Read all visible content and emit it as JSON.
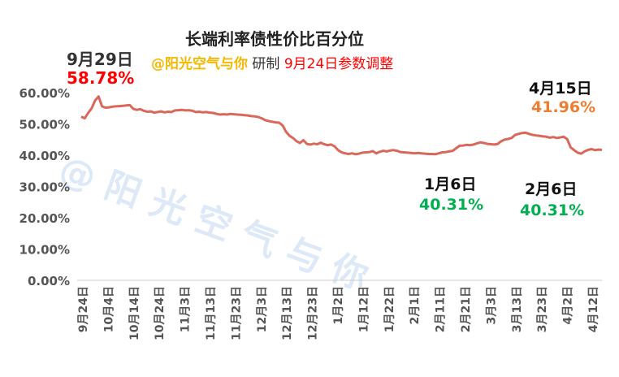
{
  "chart_data": {
    "type": "line",
    "title": "长端利率债性价比百分位",
    "subtitle": {
      "author": "@阳光空气与你",
      "made_by": "研制",
      "note": "9月24日参数调整"
    },
    "watermark": "@ 阳 光 空 气 与 你",
    "xlabel": "",
    "ylabel": "",
    "ylim": [
      0,
      0.6
    ],
    "y_ticks": [
      "0.00%",
      "10.00%",
      "20.00%",
      "30.00%",
      "40.00%",
      "50.00%",
      "60.00%"
    ],
    "x_ticks": [
      "9月24日",
      "10月4日",
      "10月14日",
      "10月24日",
      "11月3日",
      "11月13日",
      "11月23日",
      "12月3日",
      "12月13日",
      "12月23日",
      "1月2日",
      "1月12日",
      "1月22日",
      "2月1日",
      "2月11日",
      "2月21日",
      "3月3日",
      "3月13日",
      "3月23日",
      "4月2日",
      "4月12日"
    ],
    "grid": false,
    "legend": "none",
    "line_color": "#D9685B",
    "series": [
      {
        "values": [
          52.3,
          51.8,
          53.5,
          55.0,
          57.5,
          58.78,
          55.6,
          55.2,
          55.3,
          55.5,
          55.6,
          55.7,
          55.8,
          55.9,
          56.0,
          54.8,
          54.5,
          54.7,
          54.2,
          53.9,
          54.0,
          53.6,
          53.8,
          54.0,
          53.7,
          53.9,
          53.8,
          54.3,
          54.4,
          54.5,
          54.3,
          54.4,
          54.2,
          53.8,
          53.9,
          53.7,
          53.8,
          53.6,
          53.5,
          53.2,
          53.0,
          53.1,
          53.0,
          53.2,
          53.1,
          53.0,
          52.9,
          52.8,
          52.7,
          52.5,
          52.4,
          52.2,
          51.8,
          51.2,
          50.9,
          50.7,
          50.5,
          50.4,
          49.5,
          47.5,
          46.2,
          45.5,
          44.5,
          43.9,
          44.8,
          43.6,
          43.4,
          43.7,
          43.5,
          44.0,
          43.5,
          43.2,
          43.4,
          42.8,
          41.6,
          40.9,
          40.6,
          40.4,
          40.6,
          40.3,
          40.5,
          40.8,
          40.9,
          41.0,
          41.3,
          40.6,
          41.1,
          41.4,
          41.2,
          41.5,
          41.6,
          41.4,
          41.0,
          40.9,
          40.8,
          40.7,
          40.6,
          40.7,
          40.6,
          40.5,
          40.4,
          40.4,
          40.31,
          40.6,
          40.9,
          41.0,
          41.2,
          41.4,
          42.2,
          43.0,
          43.1,
          43.3,
          43.2,
          43.4,
          43.8,
          44.1,
          43.9,
          43.6,
          43.5,
          43.4,
          43.6,
          44.5,
          45.0,
          45.2,
          45.5,
          46.5,
          46.8,
          47.1,
          47.2,
          46.8,
          46.5,
          46.3,
          46.2,
          46.0,
          45.9,
          45.6,
          45.8,
          45.5,
          45.7,
          45.9,
          45.1,
          42.5,
          41.6,
          40.8,
          40.5,
          41.2,
          41.7,
          41.96,
          41.6,
          41.8,
          41.7
        ]
      }
    ],
    "annotations": [
      {
        "date": "9月29日",
        "value": "58.78%",
        "date_color": "#333333",
        "value_color": "#FF0000"
      },
      {
        "date": "1月6日",
        "value": "40.31%",
        "date_color": "#111111",
        "value_color": "#00B050"
      },
      {
        "date": "2月6日",
        "value": "40.31%",
        "date_color": "#111111",
        "value_color": "#00B050"
      },
      {
        "date": "4月15日",
        "value": "41.96%",
        "date_color": "#111111",
        "value_color": "#ED7D31"
      }
    ]
  }
}
